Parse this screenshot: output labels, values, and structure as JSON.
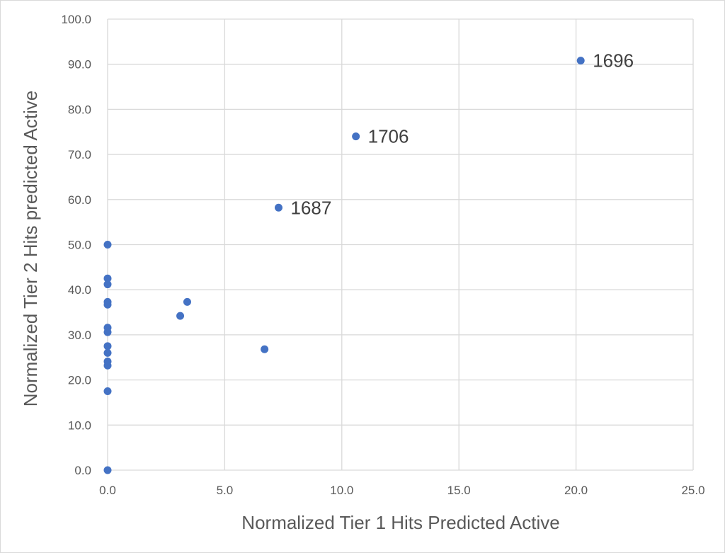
{
  "chart_data": {
    "type": "scatter",
    "title": "",
    "xlabel": "Normalized Tier 1 Hits Predicted Active",
    "ylabel": "Normalized Tier  2 Hits predicted Active",
    "xlim": [
      0,
      25
    ],
    "ylim": [
      0,
      100
    ],
    "x_ticks": [
      "0.0",
      "5.0",
      "10.0",
      "15.0",
      "20.0",
      "25.0"
    ],
    "y_ticks": [
      "0.0",
      "10.0",
      "20.0",
      "30.0",
      "40.0",
      "50.0",
      "60.0",
      "70.0",
      "80.0",
      "90.0",
      "100.0"
    ],
    "grid": true,
    "marker_color": "#4472c4",
    "series": [
      {
        "points": [
          {
            "x": 0.0,
            "y": 0.0
          },
          {
            "x": 0.0,
            "y": 17.5
          },
          {
            "x": 0.0,
            "y": 23.2
          },
          {
            "x": 0.0,
            "y": 24.1
          },
          {
            "x": 0.0,
            "y": 26.0
          },
          {
            "x": 0.0,
            "y": 27.5
          },
          {
            "x": 0.0,
            "y": 30.6
          },
          {
            "x": 0.0,
            "y": 31.6
          },
          {
            "x": 0.0,
            "y": 36.7
          },
          {
            "x": 0.0,
            "y": 37.3
          },
          {
            "x": 0.0,
            "y": 41.2
          },
          {
            "x": 0.0,
            "y": 42.5
          },
          {
            "x": 0.0,
            "y": 50.0
          },
          {
            "x": 3.1,
            "y": 34.2
          },
          {
            "x": 3.4,
            "y": 37.3
          },
          {
            "x": 6.7,
            "y": 26.8
          },
          {
            "x": 7.3,
            "y": 58.2,
            "label": "1687"
          },
          {
            "x": 10.6,
            "y": 74.0,
            "label": "1706"
          },
          {
            "x": 20.2,
            "y": 90.8,
            "label": "1696"
          }
        ]
      }
    ]
  }
}
